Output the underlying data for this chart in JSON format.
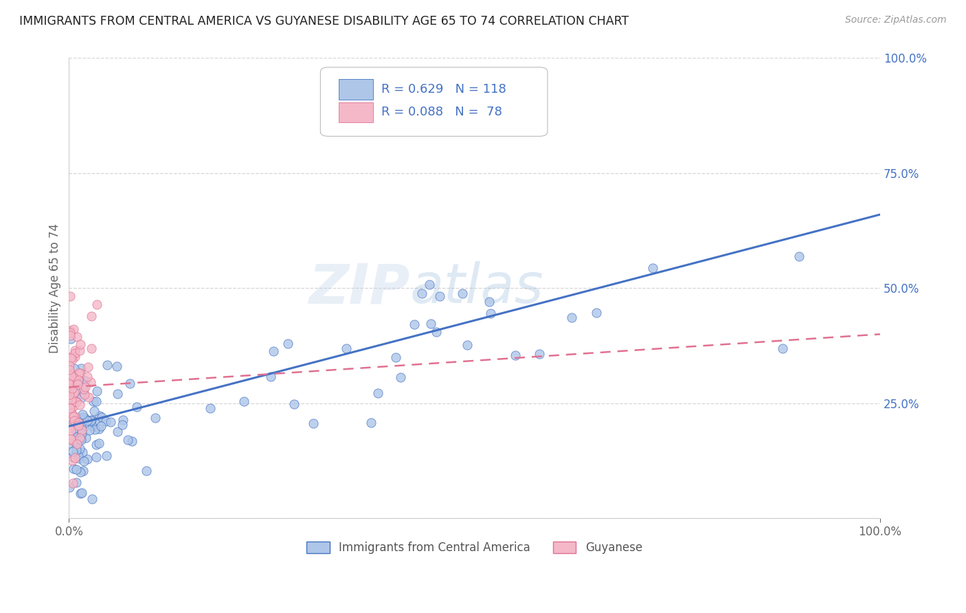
{
  "title": "IMMIGRANTS FROM CENTRAL AMERICA VS GUYANESE DISABILITY AGE 65 TO 74 CORRELATION CHART",
  "source": "Source: ZipAtlas.com",
  "xlabel_bottom": "Immigrants from Central America",
  "ylabel": "Disability Age 65 to 74",
  "legend_label1": "Immigrants from Central America",
  "legend_label2": "Guyanese",
  "R1": 0.629,
  "N1": 118,
  "R2": 0.088,
  "N2": 78,
  "color1": "#aec6e8",
  "color2": "#f4b8c8",
  "line_color1": "#4472c4",
  "line_color2": "#e07090",
  "xlim": [
    0,
    1.0
  ],
  "ylim": [
    0,
    1.0
  ],
  "x_tick_positions": [
    0.0,
    1.0
  ],
  "x_tick_labels": [
    "0.0%",
    "100.0%"
  ],
  "y_tick_positions": [
    0.0,
    0.25,
    0.5,
    0.75,
    1.0
  ],
  "y_tick_labels": [
    "",
    "25.0%",
    "50.0%",
    "75.0%",
    "100.0%"
  ],
  "watermark_zip": "ZIP",
  "watermark_atlas": "atlas",
  "blue_line_x0": 0.0,
  "blue_line_y0": 0.2,
  "blue_line_x1": 1.0,
  "blue_line_y1": 0.66,
  "pink_line_x0": 0.0,
  "pink_line_y0": 0.285,
  "pink_line_x1": 1.0,
  "pink_line_y1": 0.4,
  "background_color": "#ffffff",
  "grid_color": "#cccccc",
  "grid_linestyle": "--"
}
